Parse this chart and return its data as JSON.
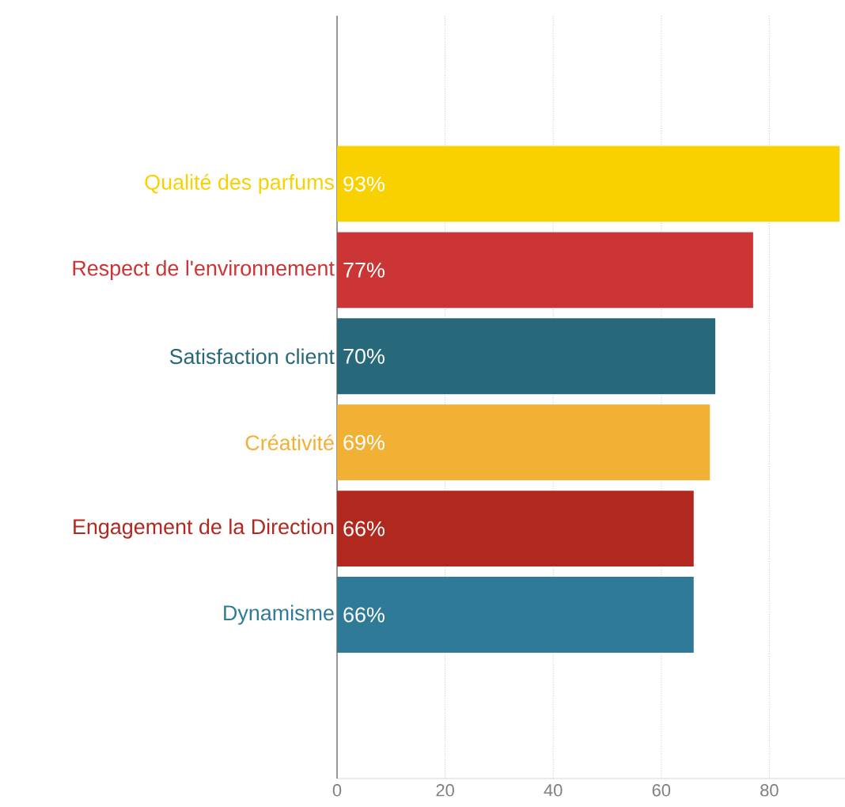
{
  "chart_data": {
    "type": "bar",
    "orientation": "horizontal",
    "categories": [
      "Qualité des parfums",
      "Respect de l'environnement",
      "Satisfaction client",
      "Créativité",
      "Engagement de la Direction",
      "Dynamisme"
    ],
    "values": [
      93,
      77,
      70,
      69,
      66,
      66
    ],
    "value_labels": [
      "93%",
      "77%",
      "70%",
      "69%",
      "66%",
      "66%"
    ],
    "colors": [
      "#f9d000",
      "#cc3535",
      "#27697a",
      "#f0b135",
      "#b1281f",
      "#2f7b97"
    ],
    "xlim": [
      0,
      94
    ],
    "xticks": [
      0,
      20,
      40,
      60,
      80
    ],
    "grid": "x"
  }
}
